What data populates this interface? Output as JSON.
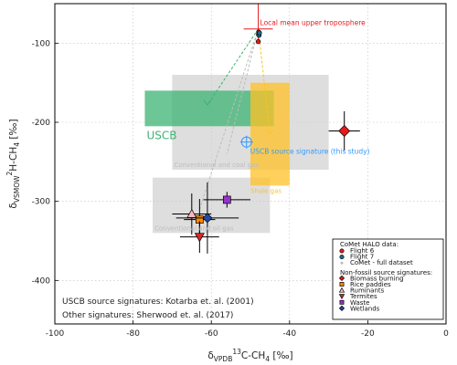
{
  "chart_data": {
    "type": "scatter",
    "x_axis": {
      "quantity": "δ",
      "subscript": "VPDB",
      "superscript": "13",
      "species_prefix": "C-CH",
      "species_sub": "4",
      "unit": " [‰]",
      "range": [
        -100,
        0
      ],
      "ticks": [
        -100,
        -80,
        -60,
        -40,
        -20,
        0
      ]
    },
    "y_axis": {
      "quantity": "δ",
      "subscript": "VSMOW",
      "superscript": "2",
      "species_prefix": "H-CH",
      "species_sub": "4",
      "unit": " [‰]",
      "range": [
        -455,
        -50
      ],
      "ticks": [
        -400,
        -300,
        -200,
        -100
      ]
    },
    "grid": true,
    "regions": [
      {
        "id": "conventional-coal-gas",
        "label": "Conventional and coal gas",
        "x": [
          -70,
          -30
        ],
        "y": [
          -260,
          -140
        ],
        "color": "#c8c8c8"
      },
      {
        "id": "conventional-oil-gas",
        "label": "Conventional and oil gas",
        "x": [
          -75,
          -45
        ],
        "y": [
          -340,
          -270
        ],
        "color": "#c8c8c8"
      },
      {
        "id": "uscb",
        "label": "USCB",
        "x": [
          -77,
          -44
        ],
        "y": [
          -205,
          -160
        ],
        "color": "#3cb371"
      },
      {
        "id": "shale-gas",
        "label": "Shale gas",
        "x": [
          -50,
          -40
        ],
        "y": [
          -280,
          -150
        ],
        "color": "#ffc125"
      }
    ],
    "uscb_signature": {
      "label": "USCB source signature (this study)",
      "x": -51,
      "y": -225,
      "color": "#3399ff"
    },
    "upper_troposphere": {
      "label": "Local mean upper troposphere",
      "x": -48,
      "y": -82,
      "color": "#e41a1c"
    },
    "flights": [
      {
        "name": "Flight 6",
        "color": "#e41a1c",
        "points": [
          [
            -48,
            -98
          ],
          [
            -47.9,
            -86
          ],
          [
            -47.8,
            -88
          ]
        ]
      },
      {
        "name": "Flight 7",
        "color": "#1f6a8a",
        "points": [
          [
            -47.9,
            -89
          ],
          [
            -47.8,
            -90
          ],
          [
            -47.7,
            -87
          ]
        ]
      }
    ],
    "full_dataset": {
      "name": "CoMet - full dataset",
      "color": "#bbbbbb"
    },
    "sources": [
      {
        "name": "Biomass burning",
        "shape": "diamond",
        "color": "#e41a1c",
        "x": -26,
        "y": -211,
        "xerr": 4,
        "yerr": 25
      },
      {
        "name": "Rice paddies",
        "shape": "square",
        "color": "#ff8c00",
        "x": -63,
        "y": -323,
        "xerr": 4,
        "yerr": 26
      },
      {
        "name": "Ruminants",
        "shape": "triangle-up",
        "color": "#ffb6c1",
        "x": -65,
        "y": -316,
        "xerr": 5,
        "yerr": 26
      },
      {
        "name": "Termites",
        "shape": "triangle-down",
        "color": "#d62728",
        "x": -63,
        "y": -345,
        "xerr": 5,
        "yerr": 20
      },
      {
        "name": "Waste",
        "shape": "square",
        "color": "#9932cc",
        "x": -56,
        "y": -298,
        "xerr": 6,
        "yerr": 10
      },
      {
        "name": "Wetlands",
        "shape": "diamond",
        "color": "#1f4aa8",
        "x": -61,
        "y": -321,
        "xerr": 8,
        "yerr": 45
      }
    ],
    "mixing_lines": [
      {
        "to": "uscb-center",
        "x": -61,
        "y": -178,
        "color": "#3cb371"
      },
      {
        "to": "shale-center",
        "x": -45,
        "y": -215,
        "color": "#ffc125"
      },
      {
        "to": "conventional-coal",
        "x": -56,
        "y": -240,
        "color": "#bbbbbb"
      },
      {
        "to": "conventional-oil",
        "x": -63,
        "y": -310,
        "color": "#bbbbbb"
      }
    ],
    "legend": {
      "placement": "bottom-right",
      "group1_title": "CoMet HALO data:",
      "group2_title": "Non-fossil source signatures:"
    },
    "citations": [
      "USCB source signatures: Kotarba et. al. (2001)",
      "Other signatures: Sherwood et. al. (2017)"
    ]
  }
}
